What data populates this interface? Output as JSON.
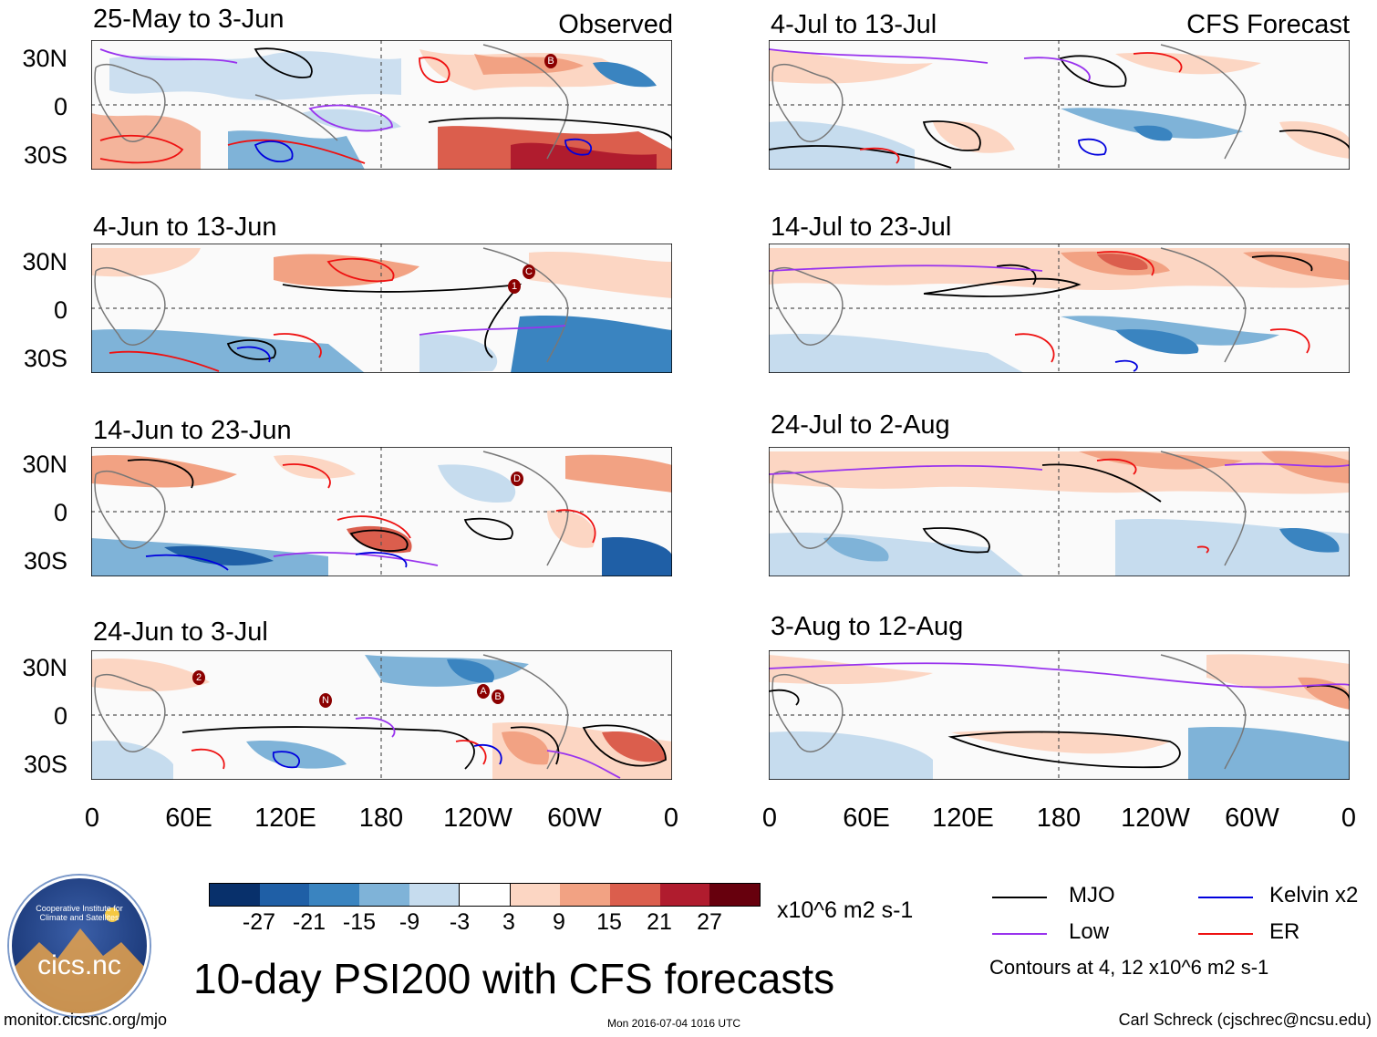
{
  "main_title": "10-day PSI200 with CFS forecasts",
  "units_label": "x10^6 m2 s-1",
  "contour_note": "Contours at 4, 12 x10^6 m2 s-1",
  "footer": {
    "left": "monitor.cicsnc.org/mjo",
    "center": "Mon 2016-07-04 1016 UTC",
    "right": "Carl Schreck (cjschrec@ncsu.edu)"
  },
  "logo": {
    "text": "cics.nc",
    "ring_text": "Cooperative Institute for Climate and Satellites"
  },
  "column_labels": {
    "left": "Observed",
    "right": "CFS Forecast"
  },
  "panels_left": [
    {
      "title": "25-May to 3-Jun"
    },
    {
      "title": "4-Jun to 13-Jun"
    },
    {
      "title": "14-Jun to 23-Jun"
    },
    {
      "title": "24-Jun to 3-Jul"
    }
  ],
  "panels_right": [
    {
      "title": "4-Jul to 13-Jul"
    },
    {
      "title": "14-Jul to 23-Jul"
    },
    {
      "title": "24-Jul to 2-Aug"
    },
    {
      "title": "3-Aug to 12-Aug"
    }
  ],
  "lat_labels": [
    "30N",
    "0",
    "30S"
  ],
  "lon_labels": [
    "0",
    "60E",
    "120E",
    "180",
    "120W",
    "60W",
    "0"
  ],
  "colorbar": {
    "ticks": [
      "-27",
      "-21",
      "-15",
      "-9",
      "-3",
      "3",
      "9",
      "15",
      "21",
      "27"
    ],
    "colors": [
      "#08306b",
      "#1f5fa6",
      "#3a84c0",
      "#7fb3d8",
      "#c6dcee",
      "#ffffff",
      "#fcd6c3",
      "#f2a283",
      "#db5e4d",
      "#b01c2e",
      "#67000d"
    ]
  },
  "legend": [
    {
      "label": "MJO",
      "color": "#000000"
    },
    {
      "label": "Kelvin x2",
      "color": "#0000dd"
    },
    {
      "label": "Low",
      "color": "#9933ee"
    },
    {
      "label": "ER",
      "color": "#ee1111"
    }
  ],
  "storm_markers": {
    "panel1": [
      "B"
    ],
    "panel2": [
      "1",
      "C"
    ],
    "panel3": [
      "D"
    ],
    "panel4": [
      "2",
      "N",
      "A",
      "B"
    ]
  }
}
